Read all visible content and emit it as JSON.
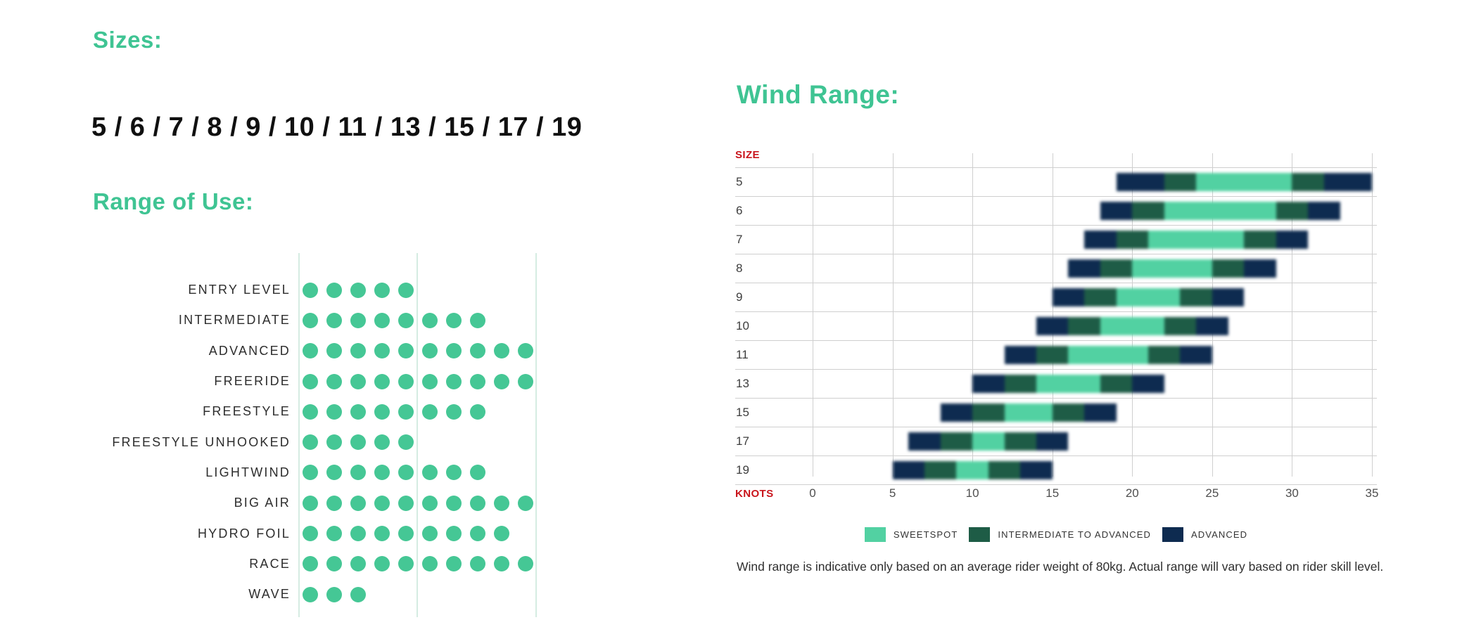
{
  "colors": {
    "heading_green": "#3fc493",
    "dot_green": "#45c795",
    "dot_grid_green": "#d5ece2",
    "sweetspot": "#52d1a2",
    "intermediate_to_advanced": "#1e5c46",
    "advanced": "#0e2b50",
    "axis_red": "#c9151c",
    "grid_gray": "#cfcfcf"
  },
  "sizes_section": {
    "title": "Sizes:",
    "values": [
      "5",
      "6",
      "7",
      "8",
      "9",
      "10",
      "11",
      "13",
      "15",
      "17",
      "19"
    ],
    "display": "5 / 6 / 7 / 8 / 9 / 10 / 11 / 13 / 15 / 17 / 19"
  },
  "range_of_use_section": {
    "title": "Range of Use:"
  },
  "wind_range_section": {
    "title": "Wind Range:",
    "y_axis_label": "SIZE",
    "x_axis_label": "KNOTS",
    "legend": [
      {
        "label": "SWEETSPOT",
        "color_key": "sweetspot"
      },
      {
        "label": "INTERMEDIATE TO ADVANCED",
        "color_key": "intermediate_to_advanced"
      },
      {
        "label": "ADVANCED",
        "color_key": "advanced"
      }
    ],
    "note": "Wind range is indicative only based on an average rider weight of 80kg. Actual range will vary based on rider skill level."
  },
  "chart_data": [
    {
      "type": "dot-matrix",
      "title": "Range of Use:",
      "categories": [
        "ENTRY LEVEL",
        "INTERMEDIATE",
        "ADVANCED",
        "FREERIDE",
        "FREESTYLE",
        "FREESTYLE UNHOOKED",
        "LIGHTWIND",
        "BIG AIR",
        "HYDRO FOIL",
        "RACE",
        "WAVE"
      ],
      "values": [
        5,
        8,
        10,
        10,
        8,
        5,
        8,
        10,
        9,
        10,
        3
      ],
      "max": 10,
      "gridlines_at_dot_index": [
        0,
        5,
        10
      ]
    },
    {
      "type": "stacked-bar-range",
      "title": "Wind Range:",
      "xlabel": "KNOTS",
      "ylabel": "SIZE",
      "xlim": [
        0,
        35
      ],
      "x_ticks": [
        0,
        5,
        10,
        15,
        20,
        25,
        30,
        35
      ],
      "grid": true,
      "legend_position": "bottom-center",
      "segment_order": [
        "advanced",
        "intermediate_to_advanced",
        "sweetspot",
        "intermediate_to_advanced",
        "advanced"
      ],
      "categories": [
        "5",
        "6",
        "7",
        "8",
        "9",
        "10",
        "11",
        "13",
        "15",
        "17",
        "19"
      ],
      "rows": [
        {
          "size": "5",
          "knots": [
            19,
            22,
            24,
            30,
            32,
            35
          ]
        },
        {
          "size": "6",
          "knots": [
            18,
            20,
            22,
            29,
            31,
            33
          ]
        },
        {
          "size": "7",
          "knots": [
            17,
            19,
            21,
            27,
            29,
            31
          ]
        },
        {
          "size": "8",
          "knots": [
            16,
            18,
            20,
            25,
            27,
            29
          ]
        },
        {
          "size": "9",
          "knots": [
            15,
            17,
            19,
            23,
            25,
            27
          ]
        },
        {
          "size": "10",
          "knots": [
            14,
            16,
            18,
            22,
            24,
            26
          ]
        },
        {
          "size": "11",
          "knots": [
            12,
            14,
            16,
            21,
            23,
            25
          ]
        },
        {
          "size": "13",
          "knots": [
            10,
            12,
            14,
            18,
            20,
            22
          ]
        },
        {
          "size": "15",
          "knots": [
            8,
            10,
            12,
            15,
            17,
            19
          ]
        },
        {
          "size": "17",
          "knots": [
            6,
            8,
            10,
            12,
            14,
            16
          ]
        },
        {
          "size": "19",
          "knots": [
            5,
            7,
            9,
            11,
            13,
            15
          ]
        }
      ]
    }
  ]
}
